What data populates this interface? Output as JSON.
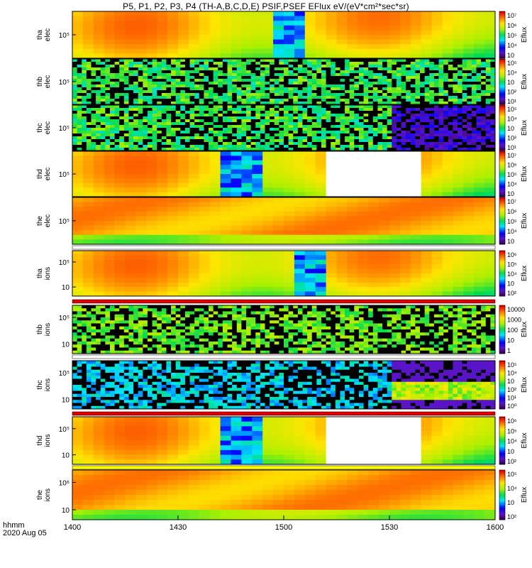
{
  "title": "P5, P1, P2, P3, P4 (TH-A,B,C,D,E) PSIF,PSEF EFlux eV/(eV*cm²*sec*sr)",
  "time_axis": {
    "label_line1": "hhmm",
    "label_line2": "2020 Aug 05",
    "ticks": [
      "1400",
      "1430",
      "1500",
      "1530",
      "1600"
    ]
  },
  "chart_data": [
    {
      "type": "heatmap",
      "ylabel": [
        "tha",
        "elec"
      ],
      "yticks": [
        "10⁵"
      ],
      "colorbar_label": "Eflux",
      "colorbar_ticks": [
        "10⁷",
        "10⁶",
        "10⁵",
        "10⁴",
        "10⁳"
      ],
      "pattern": "smooth",
      "gaps": [],
      "dark_band": [
        0.47,
        0.55
      ]
    },
    {
      "type": "heatmap",
      "ylabel": [
        "thb",
        "elec"
      ],
      "yticks": [
        "10⁵"
      ],
      "colorbar_label": "Eflux",
      "colorbar_ticks": [
        "10⁵",
        "10⁴",
        "10⁳",
        "10²",
        "10¹"
      ],
      "pattern": "noise_green",
      "gaps": []
    },
    {
      "type": "heatmap",
      "ylabel": [
        "thc",
        "elec"
      ],
      "yticks": [
        "10⁵"
      ],
      "colorbar_label": "Eflux",
      "colorbar_ticks": [
        "10⁵",
        "10⁴",
        "10⁳",
        "10²",
        "10¹"
      ],
      "pattern": "noise_green_purple",
      "gaps": [],
      "split": 0.745
    },
    {
      "type": "heatmap",
      "ylabel": [
        "thd",
        "elec"
      ],
      "yticks": [
        "10⁵"
      ],
      "colorbar_label": "Eflux",
      "colorbar_ticks": [
        "10⁷",
        "10⁶",
        "10⁵",
        "10⁴",
        "10⁳"
      ],
      "pattern": "smooth",
      "gaps": [
        [
          0.6,
          0.825
        ]
      ],
      "dark_band": [
        0.34,
        0.43
      ]
    },
    {
      "type": "heatmap",
      "ylabel": [
        "the",
        "elec"
      ],
      "yticks": [
        "10⁵"
      ],
      "colorbar_label": "Eflux",
      "colorbar_ticks": [
        "10⁷",
        "10⁶",
        "10⁵",
        "10⁴",
        "10⁳"
      ],
      "pattern": "hot",
      "gaps": []
    },
    {
      "type": "heatmap",
      "ylabel": [
        "tha",
        "ions"
      ],
      "yticks": [
        "10⁵",
        "10⁳"
      ],
      "colorbar_label": "Eflux",
      "colorbar_ticks": [
        "10⁶",
        "10⁵",
        "10⁴",
        "10⁳",
        "10²"
      ],
      "pattern": "smooth",
      "gaps": [],
      "dark_band": [
        0.5,
        0.58
      ]
    },
    {
      "type": "heatmap",
      "ylabel": [
        "thb",
        "ions"
      ],
      "yticks": [
        "10⁵",
        "10⁳"
      ],
      "colorbar_label": "Eflux",
      "colorbar_ticks": [
        "10000",
        "1000",
        "100",
        "10",
        "1"
      ],
      "pattern": "noise_ions",
      "gaps": []
    },
    {
      "type": "heatmap",
      "ylabel": [
        "thc",
        "ions"
      ],
      "yticks": [
        "10⁵",
        "10⁳"
      ],
      "colorbar_label": "Eflux",
      "colorbar_ticks": [
        "10⁵",
        "10⁴",
        "10⁳",
        "10²",
        "10¹",
        "10⁰"
      ],
      "pattern": "noise_blue",
      "gaps": [],
      "split": 0.75
    },
    {
      "type": "heatmap",
      "ylabel": [
        "thd",
        "ions"
      ],
      "yticks": [
        "10⁵",
        "10⁳"
      ],
      "colorbar_label": "Eflux",
      "colorbar_ticks": [
        "10⁶",
        "10⁵",
        "10⁴",
        "10⁳",
        "10²"
      ],
      "pattern": "smooth",
      "gaps": [
        [
          0.6,
          0.825
        ]
      ],
      "dark_band": [
        0.34,
        0.43
      ]
    },
    {
      "type": "heatmap",
      "ylabel": [
        "the",
        "ions"
      ],
      "yticks": [
        "10⁶",
        "10⁳"
      ],
      "colorbar_label": "Eflux",
      "colorbar_ticks": [
        "10⁵",
        "10⁴",
        "10⁳",
        "10²"
      ],
      "pattern": "hot",
      "gaps": []
    }
  ]
}
